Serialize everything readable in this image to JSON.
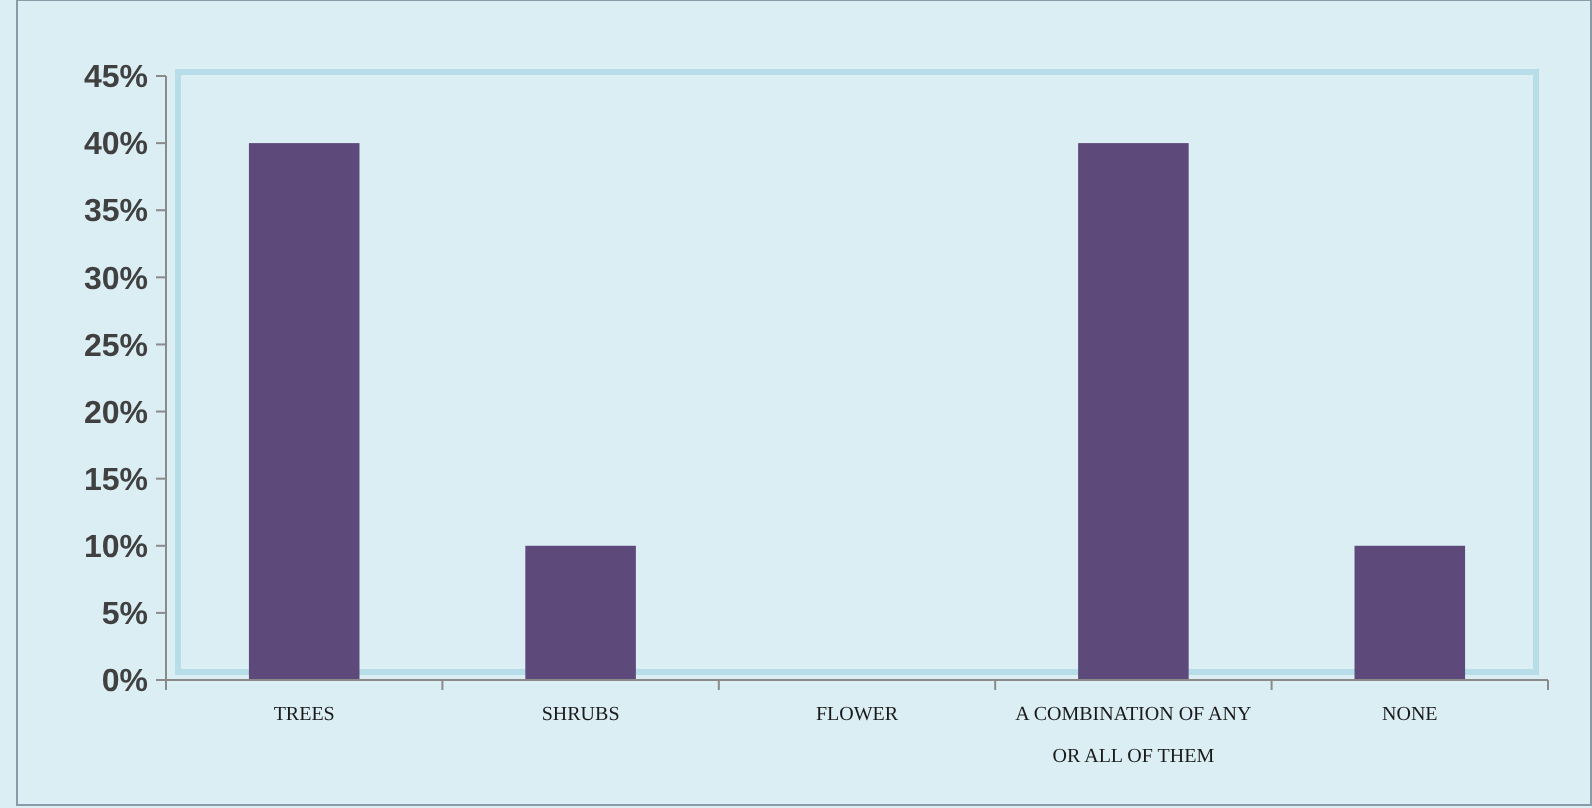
{
  "chart_data": {
    "type": "bar",
    "categories": [
      "TREES",
      "SHRUBS",
      "FLOWER",
      "A COMBINATION OF ANY OR ALL OF THEM",
      "NONE"
    ],
    "values": [
      40,
      10,
      0,
      40,
      10
    ],
    "color": "#5e4a7a",
    "ylim": [
      0,
      45
    ],
    "yticks": [
      {
        "value": 0,
        "label": "0%"
      },
      {
        "value": 5,
        "label": "5%"
      },
      {
        "value": 10,
        "label": "10%"
      },
      {
        "value": 15,
        "label": "15%"
      },
      {
        "value": 20,
        "label": "20%"
      },
      {
        "value": 25,
        "label": "25%"
      },
      {
        "value": 30,
        "label": "30%"
      },
      {
        "value": 35,
        "label": "35%"
      },
      {
        "value": 40,
        "label": "40%"
      },
      {
        "value": 45,
        "label": "45%"
      }
    ],
    "grid": false
  }
}
